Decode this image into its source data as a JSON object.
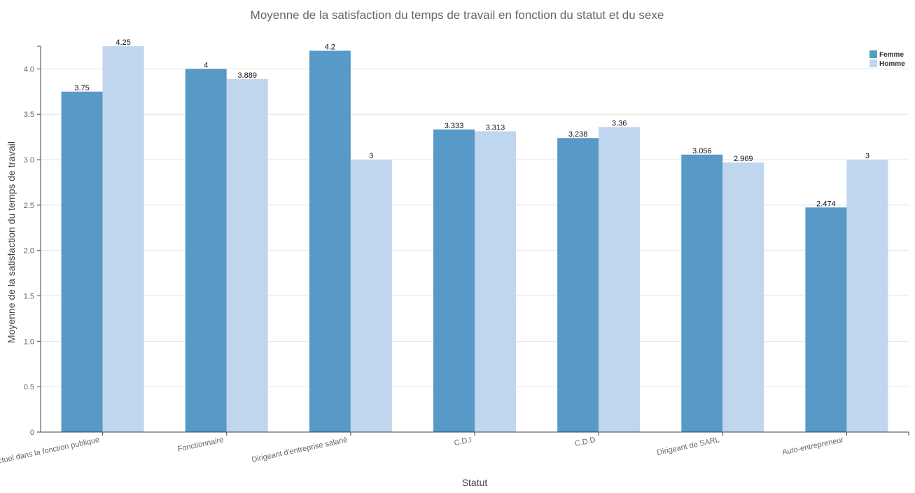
{
  "chart_data": {
    "type": "bar",
    "title": "Moyenne de la satisfaction du temps de travail en fonction du statut et du sexe",
    "xlabel": "Statut",
    "ylabel": "Moyenne de la satisfaction du temps de travail",
    "categories": [
      "Contractuel dans la fonction publique",
      "Fonctionnaire",
      "Dirigeant d'entreprise salarié",
      "C.D.I",
      "C.D.D",
      "Dirigeant de SARL",
      "Auto-entrepreneur"
    ],
    "series": [
      {
        "name": "Femme",
        "color": "#5799c7",
        "values": [
          3.75,
          4,
          4.2,
          3.333,
          3.238,
          3.056,
          2.474
        ],
        "labels": [
          "3.75",
          "4",
          "4.2",
          "3.333",
          "3.238",
          "3.056",
          "2.474"
        ]
      },
      {
        "name": "Homme",
        "color": "#c0d5ee",
        "values": [
          4.25,
          3.889,
          3,
          3.313,
          3.36,
          2.969,
          3
        ],
        "labels": [
          "4.25",
          "3.889",
          "3",
          "3.313",
          "3.36",
          "2.969",
          "3"
        ]
      }
    ],
    "ylim": [
      0,
      4.25
    ],
    "yticks": [
      "0",
      "0.5",
      "1.0",
      "1.5",
      "2.0",
      "2.5",
      "3.0",
      "3.5",
      "4.0"
    ],
    "ytick_values": [
      0,
      0.5,
      1,
      1.5,
      2,
      2.5,
      3,
      3.5,
      4
    ],
    "grid": true,
    "legend": "top-right"
  }
}
